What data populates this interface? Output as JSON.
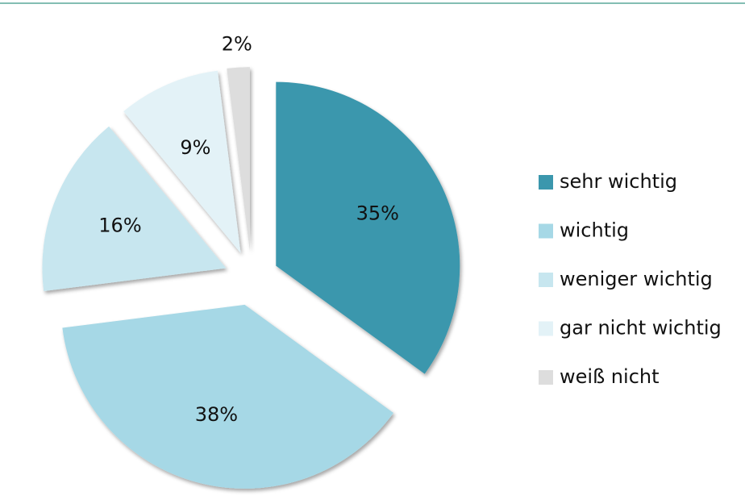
{
  "chart_data": {
    "type": "pie",
    "categories": [
      "sehr wichtig",
      "wichtig",
      "weniger wichtig",
      "gar nicht wichtig",
      "weiß nicht"
    ],
    "values": [
      35,
      38,
      16,
      9,
      2
    ],
    "value_labels": [
      "35%",
      "38%",
      "16%",
      "9%",
      "2%"
    ],
    "colors": [
      "#3b97ad",
      "#a6d8e6",
      "#c7e6ef",
      "#e3f2f7",
      "#dddddd"
    ],
    "legend": "right"
  }
}
